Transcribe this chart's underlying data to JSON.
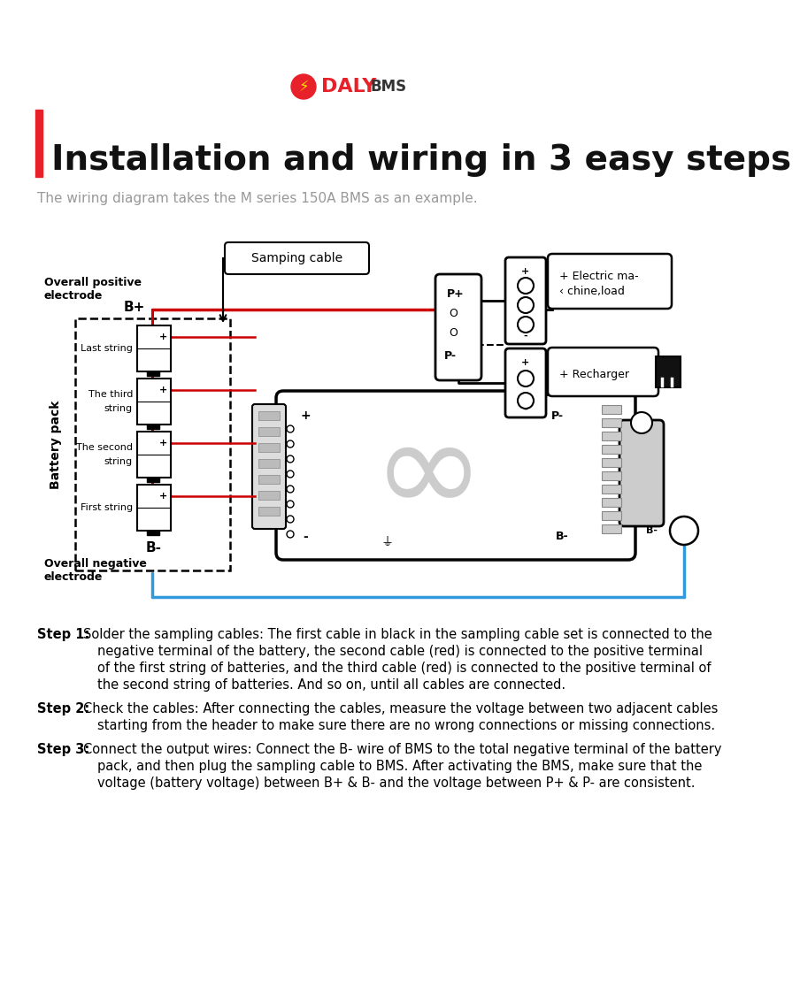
{
  "bg_color": "#ffffff",
  "title_main": "Installation and wiring in 3 easy steps",
  "title_sub": "The wiring diagram takes the M series 150A BMS as an example.",
  "logo_color_daly": "#e8202a",
  "logo_color_bms": "#333333",
  "title_bar_color": "#e8202a",
  "step1_bold": "Step 1:",
  "step1_lines": [
    "Solder the sampling cables: The first cable in black in the sampling cable set is connected to the",
    "negative terminal of the battery, the second cable (red) is connected to the positive terminal",
    "of the first string of batteries, and the third cable (red) is connected to the positive terminal of",
    "the second string of batteries. And so on, until all cables are connected."
  ],
  "step2_bold": "Step 2:",
  "step2_lines": [
    "Check the cables: After connecting the cables, measure the voltage between two adjacent cables",
    "starting from the header to make sure there are no wrong connections or missing connections."
  ],
  "step3_bold": "Step 3:",
  "step3_lines": [
    "Connect the output wires: Connect the B- wire of BMS to the total negative terminal of the battery",
    "pack, and then plug the sampling cable to BMS. After activating the BMS, make sure that the",
    "voltage (battery voltage) between B+ & B- and the voltage between P+ & P- are consistent."
  ],
  "color_red": "#cc0000",
  "color_blue": "#3399dd",
  "color_black": "#111111",
  "color_gray": "#aaaaaa",
  "color_darkgray": "#555555",
  "color_lightgray": "#dddddd",
  "sampling_cable_label": "Samping cable",
  "overall_pos_label1": "Overall positive",
  "overall_pos_label2": "electrode",
  "overall_neg_label1": "Overall negative",
  "overall_neg_label2": "electrode",
  "b_plus_label": "B+",
  "b_minus_label": "B-",
  "battery_pack_label": "Battery pack",
  "last_string_label": "Last string",
  "third_string_label1": "The third",
  "third_string_label2": "string",
  "second_string_label1": "The second",
  "second_string_label2": "string",
  "first_string_label": "First string",
  "p_plus_label": "P+",
  "p_minus_label": "P-",
  "electric_label1": "+ Electric ma-",
  "electric_label2": "‹ chine,load",
  "recharger_label": "+ Recharger",
  "b_minus_bms": "B-",
  "bms_plus": "+",
  "bms_minus": "-",
  "bms_p_minus": "P-"
}
